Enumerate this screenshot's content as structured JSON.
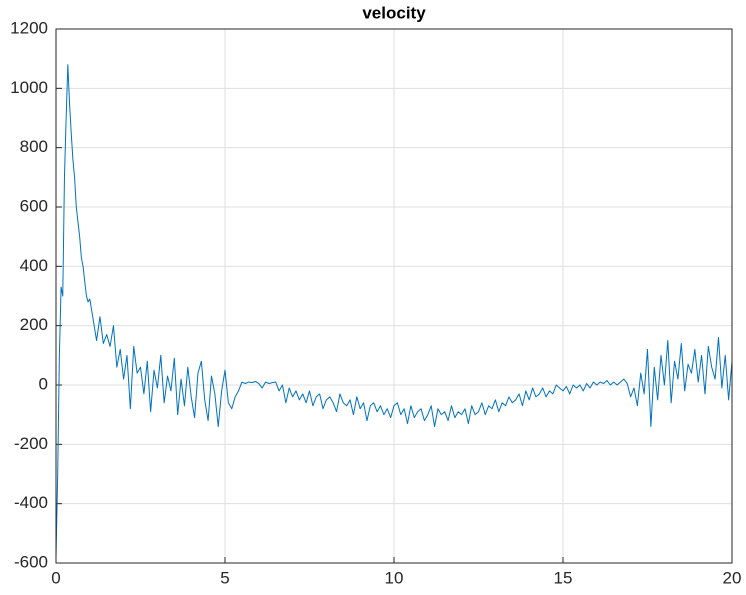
{
  "chart_data": {
    "type": "line",
    "title": "velocity",
    "x": [
      0,
      0.05,
      0.1,
      0.15,
      0.2,
      0.25,
      0.3,
      0.35,
      0.4,
      0.45,
      0.5,
      0.55,
      0.6,
      0.65,
      0.7,
      0.75,
      0.8,
      0.85,
      0.9,
      0.95,
      1.0,
      1.1,
      1.2,
      1.3,
      1.4,
      1.5,
      1.6,
      1.7,
      1.8,
      1.9,
      2.0,
      2.1,
      2.2,
      2.3,
      2.4,
      2.5,
      2.6,
      2.7,
      2.8,
      2.9,
      3.0,
      3.1,
      3.2,
      3.3,
      3.4,
      3.5,
      3.6,
      3.7,
      3.8,
      3.9,
      4.0,
      4.1,
      4.2,
      4.3,
      4.4,
      4.5,
      4.6,
      4.7,
      4.8,
      4.9,
      5.0,
      5.1,
      5.2,
      5.3,
      5.4,
      5.5,
      5.6,
      5.7,
      5.8,
      5.9,
      6.0,
      6.1,
      6.2,
      6.3,
      6.4,
      6.5,
      6.6,
      6.7,
      6.8,
      6.9,
      7.0,
      7.1,
      7.2,
      7.3,
      7.4,
      7.5,
      7.6,
      7.7,
      7.8,
      7.9,
      8.0,
      8.1,
      8.2,
      8.3,
      8.4,
      8.5,
      8.6,
      8.7,
      8.8,
      8.9,
      9.0,
      9.1,
      9.2,
      9.3,
      9.4,
      9.5,
      9.6,
      9.7,
      9.8,
      9.9,
      10.0,
      10.1,
      10.2,
      10.3,
      10.4,
      10.5,
      10.6,
      10.7,
      10.8,
      10.9,
      11.0,
      11.1,
      11.2,
      11.3,
      11.4,
      11.5,
      11.6,
      11.7,
      11.8,
      11.9,
      12.0,
      12.1,
      12.2,
      12.3,
      12.4,
      12.5,
      12.6,
      12.7,
      12.8,
      12.9,
      13.0,
      13.1,
      13.2,
      13.3,
      13.4,
      13.5,
      13.6,
      13.7,
      13.8,
      13.9,
      14.0,
      14.1,
      14.2,
      14.3,
      14.4,
      14.5,
      14.6,
      14.7,
      14.8,
      14.9,
      15.0,
      15.1,
      15.2,
      15.3,
      15.4,
      15.5,
      15.6,
      15.7,
      15.8,
      15.9,
      16.0,
      16.1,
      16.2,
      16.3,
      16.4,
      16.5,
      16.6,
      16.7,
      16.8,
      16.9,
      17.0,
      17.1,
      17.2,
      17.3,
      17.4,
      17.5,
      17.6,
      17.7,
      17.8,
      17.9,
      18.0,
      18.1,
      18.2,
      18.3,
      18.4,
      18.5,
      18.6,
      18.7,
      18.8,
      18.9,
      19.0,
      19.1,
      19.2,
      19.3,
      19.4,
      19.5,
      19.6,
      19.7,
      19.8,
      19.9,
      20.0
    ],
    "series": [
      {
        "color": "#0072bd",
        "values": [
          -580,
          -300,
          100,
          330,
          300,
          700,
          900,
          1080,
          950,
          850,
          760,
          700,
          600,
          550,
          500,
          430,
          400,
          350,
          300,
          280,
          290,
          220,
          150,
          230,
          140,
          170,
          130,
          200,
          60,
          120,
          20,
          100,
          -80,
          130,
          40,
          60,
          -30,
          80,
          -90,
          50,
          -10,
          100,
          -60,
          30,
          -20,
          90,
          -100,
          20,
          -70,
          60,
          -40,
          -110,
          40,
          80,
          -50,
          -120,
          30,
          -30,
          -140,
          -20,
          50,
          -60,
          -80,
          -40,
          -20,
          10,
          5,
          10,
          8,
          12,
          5,
          -10,
          10,
          5,
          8,
          10,
          -20,
          0,
          -60,
          -10,
          -40,
          -20,
          -50,
          -30,
          -60,
          -20,
          -70,
          -40,
          -30,
          -80,
          -50,
          -40,
          -60,
          -90,
          -30,
          -60,
          -70,
          -50,
          -100,
          -40,
          -80,
          -60,
          -120,
          -70,
          -60,
          -90,
          -70,
          -100,
          -80,
          -110,
          -70,
          -60,
          -100,
          -80,
          -130,
          -70,
          -110,
          -90,
          -80,
          -120,
          -100,
          -70,
          -140,
          -80,
          -100,
          -90,
          -120,
          -70,
          -110,
          -90,
          -100,
          -80,
          -130,
          -70,
          -100,
          -90,
          -60,
          -100,
          -70,
          -80,
          -50,
          -90,
          -60,
          -70,
          -40,
          -60,
          -50,
          -30,
          -70,
          -20,
          -50,
          -10,
          -40,
          -30,
          -10,
          -40,
          -20,
          -30,
          0,
          -10,
          -20,
          -5,
          -30,
          0,
          -10,
          0,
          -20,
          5,
          -10,
          10,
          0,
          10,
          5,
          15,
          0,
          10,
          0,
          10,
          20,
          5,
          -40,
          -10,
          -70,
          40,
          -30,
          120,
          -140,
          60,
          -50,
          100,
          0,
          150,
          -60,
          80,
          20,
          140,
          -20,
          70,
          40,
          120,
          10,
          100,
          -30,
          130,
          60,
          20,
          160,
          -10,
          100,
          -50,
          80
        ]
      }
    ],
    "xlim": [
      0,
      20
    ],
    "xticks": [
      0,
      5,
      10,
      15,
      20
    ],
    "ylim": [
      -600,
      1200
    ],
    "yticks": [
      -600,
      -400,
      -200,
      0,
      200,
      400,
      600,
      800,
      1000,
      1200
    ],
    "grid": true
  }
}
